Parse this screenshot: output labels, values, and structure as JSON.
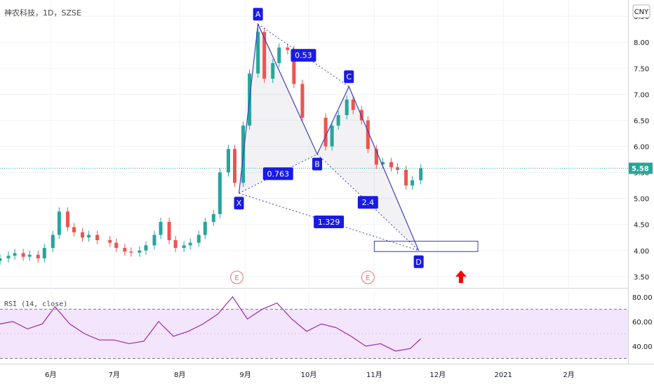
{
  "header": {
    "symbol_title": "神农科技，1D，SZSE",
    "currency_button": "CNY"
  },
  "colors": {
    "up": "#26a69a",
    "down": "#ef5350",
    "pattern": "#3f3fbf",
    "pattern_label_bg": "#1a1ae6",
    "rsi_line": "#9c27b0",
    "rsi_band": "#f3e5fb",
    "price_line": "#26a69a",
    "arrow": "#ff0000",
    "event": "#e57373"
  },
  "chart_data": [
    {
      "type": "candlestick",
      "title": "神农科技，1D，SZSE",
      "ylim": [
        3.35,
        8.65
      ],
      "yticks": [
        "3.50",
        "4.00",
        "4.50",
        "5.00",
        "5.50",
        "6.00",
        "6.50",
        "7.00",
        "7.50",
        "8.00",
        "8.50"
      ],
      "x_range_days": [
        "2020-05-08",
        "2021-03-01"
      ],
      "xticks": [
        {
          "label": "6月",
          "date": "2020-06-01"
        },
        {
          "label": "7月",
          "date": "2020-07-01"
        },
        {
          "label": "8月",
          "date": "2020-08-01"
        },
        {
          "label": "9月",
          "date": "2020-09-01"
        },
        {
          "label": "10月",
          "date": "2020-10-01"
        },
        {
          "label": "11月",
          "date": "2020-11-01"
        },
        {
          "label": "12月",
          "date": "2020-12-01"
        },
        {
          "label": "2021",
          "date": "2021-01-01"
        },
        {
          "label": "2月",
          "date": "2021-02-01"
        }
      ],
      "last_price": "5.58",
      "close_series": [
        [
          "2020-05-08",
          3.85
        ],
        [
          "2020-05-12",
          3.9
        ],
        [
          "2020-05-15",
          3.95
        ],
        [
          "2020-05-19",
          3.88
        ],
        [
          "2020-05-22",
          3.92
        ],
        [
          "2020-05-26",
          3.85
        ],
        [
          "2020-05-29",
          4.05
        ],
        [
          "2020-06-02",
          4.3
        ],
        [
          "2020-06-05",
          4.75
        ],
        [
          "2020-06-09",
          4.45
        ],
        [
          "2020-06-12",
          4.35
        ],
        [
          "2020-06-16",
          4.25
        ],
        [
          "2020-06-19",
          4.3
        ],
        [
          "2020-06-23",
          4.2
        ],
        [
          "2020-06-29",
          4.15
        ],
        [
          "2020-07-02",
          4.05
        ],
        [
          "2020-07-06",
          3.98
        ],
        [
          "2020-07-09",
          3.96
        ],
        [
          "2020-07-13",
          4.0
        ],
        [
          "2020-07-16",
          4.1
        ],
        [
          "2020-07-20",
          4.3
        ],
        [
          "2020-07-23",
          4.55
        ],
        [
          "2020-07-27",
          4.2
        ],
        [
          "2020-07-30",
          4.05
        ],
        [
          "2020-08-03",
          4.1
        ],
        [
          "2020-08-06",
          4.15
        ],
        [
          "2020-08-10",
          4.3
        ],
        [
          "2020-08-13",
          4.55
        ],
        [
          "2020-08-17",
          4.7
        ],
        [
          "2020-08-20",
          5.5
        ],
        [
          "2020-08-24",
          5.95
        ],
        [
          "2020-08-27",
          5.3
        ],
        [
          "2020-08-31",
          6.4
        ],
        [
          "2020-09-03",
          7.4
        ],
        [
          "2020-09-07",
          8.2
        ],
        [
          "2020-09-10",
          7.3
        ],
        [
          "2020-09-14",
          7.6
        ],
        [
          "2020-09-17",
          7.9
        ],
        [
          "2020-09-21",
          7.85
        ],
        [
          "2020-09-24",
          7.2
        ],
        [
          "2020-09-28",
          6.55
        ],
        [
          "2020-10-09",
          6.0
        ],
        [
          "2020-10-12",
          6.4
        ],
        [
          "2020-10-15",
          6.6
        ],
        [
          "2020-10-19",
          6.9
        ],
        [
          "2020-10-22",
          6.7
        ],
        [
          "2020-10-26",
          6.5
        ],
        [
          "2020-10-29",
          5.95
        ],
        [
          "2020-11-02",
          5.65
        ],
        [
          "2020-11-05",
          5.7
        ],
        [
          "2020-11-09",
          5.6
        ],
        [
          "2020-11-12",
          5.55
        ],
        [
          "2020-11-16",
          5.25
        ],
        [
          "2020-11-19",
          5.35
        ],
        [
          "2020-11-23",
          5.58
        ]
      ]
    },
    {
      "type": "line",
      "title": "RSI (14, close)",
      "ylim": [
        28,
        85
      ],
      "yticks": [
        "40.00",
        "60.00",
        "80.00"
      ],
      "band": [
        30,
        70
      ],
      "series": [
        {
          "values": [
            [
              "2020-05-08",
              58
            ],
            [
              "2020-05-14",
              60
            ],
            [
              "2020-05-21",
              54
            ],
            [
              "2020-05-28",
              58
            ],
            [
              "2020-06-03",
              72
            ],
            [
              "2020-06-10",
              58
            ],
            [
              "2020-06-17",
              50
            ],
            [
              "2020-06-24",
              45
            ],
            [
              "2020-07-01",
              45
            ],
            [
              "2020-07-08",
              42
            ],
            [
              "2020-07-15",
              44
            ],
            [
              "2020-07-22",
              60
            ],
            [
              "2020-07-29",
              48
            ],
            [
              "2020-08-05",
              52
            ],
            [
              "2020-08-12",
              58
            ],
            [
              "2020-08-19",
              66
            ],
            [
              "2020-08-26",
              80
            ],
            [
              "2020-09-02",
              62
            ],
            [
              "2020-09-09",
              70
            ],
            [
              "2020-09-16",
              75
            ],
            [
              "2020-09-23",
              62
            ],
            [
              "2020-09-30",
              52
            ],
            [
              "2020-10-07",
              58
            ],
            [
              "2020-10-14",
              55
            ],
            [
              "2020-10-21",
              48
            ],
            [
              "2020-10-28",
              40
            ],
            [
              "2020-11-04",
              42
            ],
            [
              "2020-11-11",
              36
            ],
            [
              "2020-11-18",
              38
            ],
            [
              "2020-11-23",
              46
            ]
          ]
        }
      ]
    }
  ],
  "harmonic_pattern": {
    "points": [
      {
        "label": "X",
        "date": "2020-08-29",
        "price": 5.1
      },
      {
        "label": "A",
        "date": "2020-09-07",
        "price": 8.35
      },
      {
        "label": "B",
        "date": "2020-10-05",
        "price": 5.85
      },
      {
        "label": "C",
        "date": "2020-10-20",
        "price": 7.15
      },
      {
        "label": "D",
        "date": "2020-11-22",
        "price": 4.0
      }
    ],
    "ratios": [
      {
        "text": "0.763",
        "between": [
          "X",
          "B"
        ]
      },
      {
        "text": "0.53",
        "between": [
          "A",
          "C"
        ]
      },
      {
        "text": "2.4",
        "between": [
          "B",
          "D"
        ]
      },
      {
        "text": "1.329",
        "between": [
          "X",
          "D"
        ]
      }
    ],
    "target_box": {
      "date_from": "2020-11-01",
      "date_to": "2020-12-20",
      "price_top": 4.18,
      "price_bottom": 3.98
    },
    "arrow": {
      "date": "2020-12-12",
      "price": 3.62
    }
  },
  "events": [
    {
      "label": "E",
      "date": "2020-08-28"
    },
    {
      "label": "E",
      "date": "2020-10-29"
    }
  ]
}
